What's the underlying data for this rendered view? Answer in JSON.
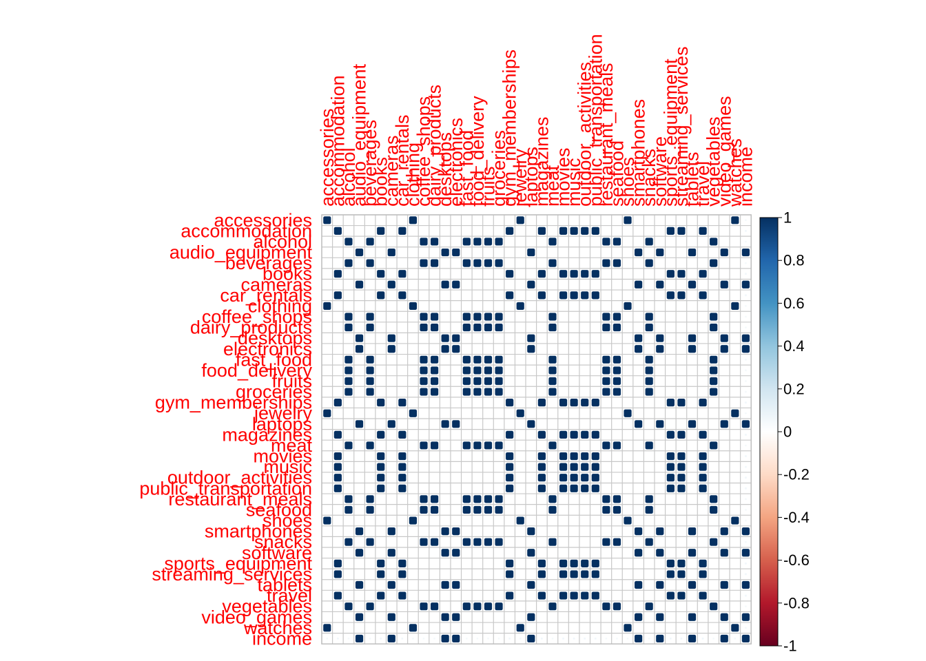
{
  "chart_data": {
    "type": "heatmap",
    "variables": [
      "accessories",
      "accommodation",
      "alcohol",
      "audio_equipment",
      "beverages",
      "books",
      "cameras",
      "car_rentals",
      "clothing",
      "coffee_shops",
      "dairy_products",
      "desktops",
      "electronics",
      "fast_food",
      "food_delivery",
      "fruits",
      "groceries",
      "gym_memberships",
      "jewelry",
      "laptops",
      "magazines",
      "meat",
      "movies",
      "music",
      "outdoor_activities",
      "public_transportation",
      "restaurant_meals",
      "seafood",
      "shoes",
      "smartphones",
      "snacks",
      "software",
      "sports_equipment",
      "streaming_services",
      "tablets",
      "travel",
      "vegetables",
      "video_games",
      "watches",
      "income"
    ],
    "groups": {
      "A": [
        "accessories",
        "clothing",
        "jewelry",
        "shoes",
        "watches"
      ],
      "B": [
        "accommodation",
        "books",
        "car_rentals",
        "gym_memberships",
        "magazines",
        "movies",
        "music",
        "outdoor_activities",
        "public_transportation",
        "sports_equipment",
        "streaming_services",
        "travel"
      ],
      "C": [
        "alcohol",
        "beverages",
        "coffee_shops",
        "dairy_products",
        "fast_food",
        "food_delivery",
        "fruits",
        "groceries",
        "meat",
        "restaurant_meals",
        "seafood",
        "snacks",
        "vegetables"
      ],
      "D": [
        "audio_equipment",
        "cameras",
        "desktops",
        "electronics",
        "laptops",
        "smartphones",
        "software",
        "tablets",
        "video_games",
        "income"
      ]
    },
    "within_group_r": 1,
    "income_correlation": {
      "A": 0.05,
      "B": 0.06,
      "C": 0.05,
      "D": 1
    },
    "value_range": [
      -1,
      1
    ],
    "legend_ticks": [
      "1",
      "0.8",
      "0.6",
      "0.4",
      "0.2",
      "0",
      "-0.2",
      "-0.4",
      "-0.6",
      "-0.8",
      "-1"
    ],
    "legend_placement": "right",
    "colors": {
      "label": "#ff0000",
      "grid": "#c8c8c8",
      "frame": "#bebebe",
      "scale": [
        "#67001f",
        "#b2182b",
        "#d6604d",
        "#f4a582",
        "#fddbc7",
        "#ffffff",
        "#d1e5f0",
        "#92c5de",
        "#4393c3",
        "#2166ac",
        "#053061"
      ]
    }
  }
}
